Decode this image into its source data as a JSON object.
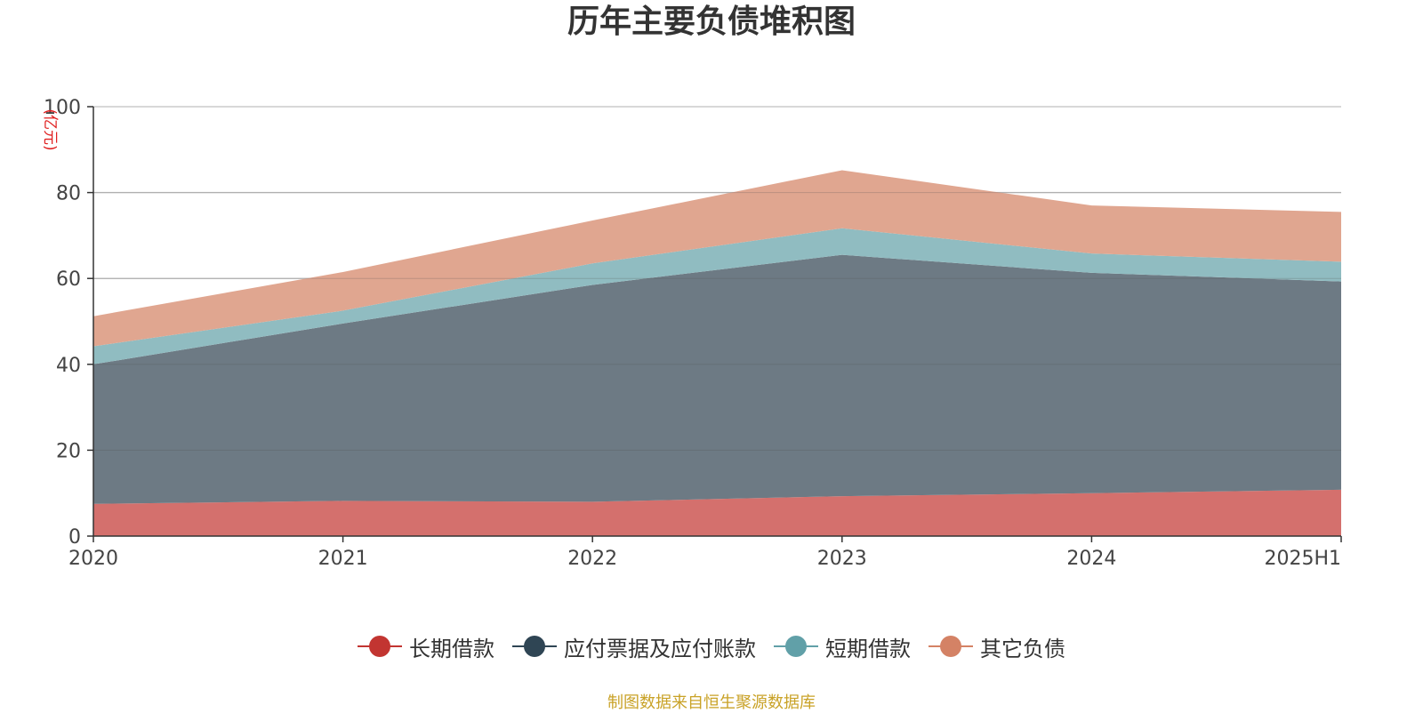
{
  "title": "历年主要负债堆积图",
  "source_note": "制图数据来自恒生聚源数据库",
  "chart_data": {
    "type": "area",
    "stacked": true,
    "categories": [
      "2020",
      "2021",
      "2022",
      "2023",
      "2024",
      "2025H1"
    ],
    "ylabel": "(亿元)",
    "ylim": [
      0,
      100
    ],
    "yticks": [
      0,
      20,
      40,
      60,
      80,
      100
    ],
    "grid": true,
    "legend_position": "bottom",
    "series": [
      {
        "name": "长期借款",
        "color": "#c23531",
        "fill": "#d4706d",
        "values": [
          7.5,
          8.2,
          8.0,
          9.3,
          10.0,
          10.8
        ]
      },
      {
        "name": "应付票据及应付账款",
        "color": "#2f4554",
        "fill": "#6d7a84",
        "values": [
          32.5,
          41.3,
          50.5,
          56.2,
          51.3,
          48.5
        ]
      },
      {
        "name": "短期借款",
        "color": "#61a0a8",
        "fill": "#90bcc1",
        "values": [
          4.2,
          3.0,
          5.0,
          6.2,
          4.5,
          4.6
        ]
      },
      {
        "name": "其它负债",
        "color": "#d48265",
        "fill": "#e0a690",
        "values": [
          7.0,
          9.0,
          10.0,
          13.5,
          11.2,
          11.6
        ]
      }
    ]
  }
}
